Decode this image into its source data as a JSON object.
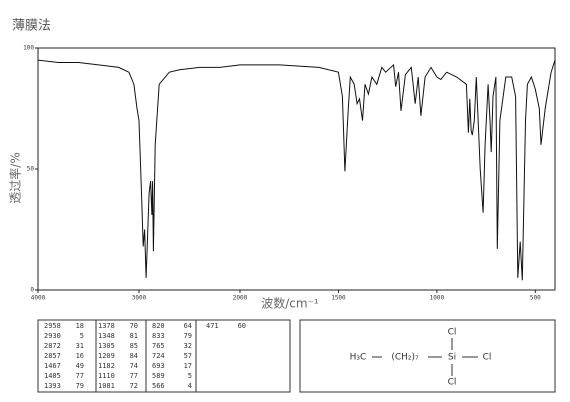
{
  "chart_data": {
    "type": "line",
    "title": "薄膜法",
    "x_label": "波数/cm⁻¹",
    "y_label": "透过率/%",
    "xlim": [
      4000,
      400
    ],
    "x_break": 2000,
    "ylim": [
      0,
      100
    ],
    "xticks": [
      4000,
      3000,
      2000,
      1500,
      1000,
      500
    ],
    "yticks": [
      0,
      50,
      100
    ],
    "color": "#111",
    "x": [
      4000,
      3800,
      3600,
      3400,
      3200,
      3100,
      3050,
      3020,
      3000,
      2975,
      2958,
      2945,
      2930,
      2900,
      2885,
      2872,
      2865,
      2857,
      2840,
      2800,
      2700,
      2600,
      2400,
      2200,
      2000,
      1800,
      1600,
      1500,
      1480,
      1467,
      1450,
      1440,
      1420,
      1405,
      1393,
      1378,
      1365,
      1348,
      1330,
      1305,
      1280,
      1260,
      1220,
      1209,
      1195,
      1182,
      1160,
      1130,
      1110,
      1095,
      1081,
      1060,
      1030,
      1000,
      980,
      950,
      900,
      850,
      840,
      833,
      826,
      820,
      810,
      800,
      780,
      765,
      755,
      740,
      730,
      724,
      715,
      700,
      693,
      680,
      650,
      620,
      600,
      589,
      577,
      566,
      550,
      540,
      520,
      500,
      480,
      471,
      450,
      420,
      400
    ],
    "values": [
      95,
      94,
      94,
      93,
      92,
      90,
      85,
      75,
      70,
      40,
      18,
      25,
      5,
      40,
      45,
      31,
      45,
      16,
      60,
      85,
      90,
      91,
      92,
      92,
      93,
      93,
      92,
      90,
      80,
      49,
      75,
      88,
      85,
      77,
      79,
      70,
      85,
      81,
      88,
      85,
      92,
      90,
      93,
      84,
      90,
      74,
      89,
      92,
      77,
      88,
      72,
      88,
      92,
      88,
      87,
      90,
      88,
      85,
      65,
      79,
      66,
      64,
      70,
      88,
      50,
      32,
      60,
      85,
      70,
      57,
      80,
      88,
      17,
      70,
      88,
      88,
      80,
      5,
      20,
      4,
      70,
      85,
      88,
      83,
      75,
      60,
      75,
      90,
      95
    ],
    "peak_table": [
      [
        2958,
        18
      ],
      [
        2930,
        5
      ],
      [
        2872,
        31
      ],
      [
        2857,
        16
      ],
      [
        1467,
        49
      ],
      [
        1405,
        77
      ],
      [
        1393,
        79
      ],
      [
        1378,
        70
      ],
      [
        1348,
        81
      ],
      [
        1305,
        85
      ],
      [
        1209,
        84
      ],
      [
        1182,
        74
      ],
      [
        1110,
        77
      ],
      [
        1081,
        72
      ],
      [
        820,
        64
      ],
      [
        833,
        79
      ],
      [
        765,
        32
      ],
      [
        724,
        57
      ],
      [
        693,
        17
      ],
      [
        589,
        5
      ],
      [
        566,
        4
      ],
      [
        471,
        60
      ]
    ]
  },
  "structure": {
    "left": "H₃C",
    "chain": "(CH₂)₇",
    "center": "Si",
    "right": "Cl",
    "top": "Cl",
    "bottom": "Cl"
  }
}
